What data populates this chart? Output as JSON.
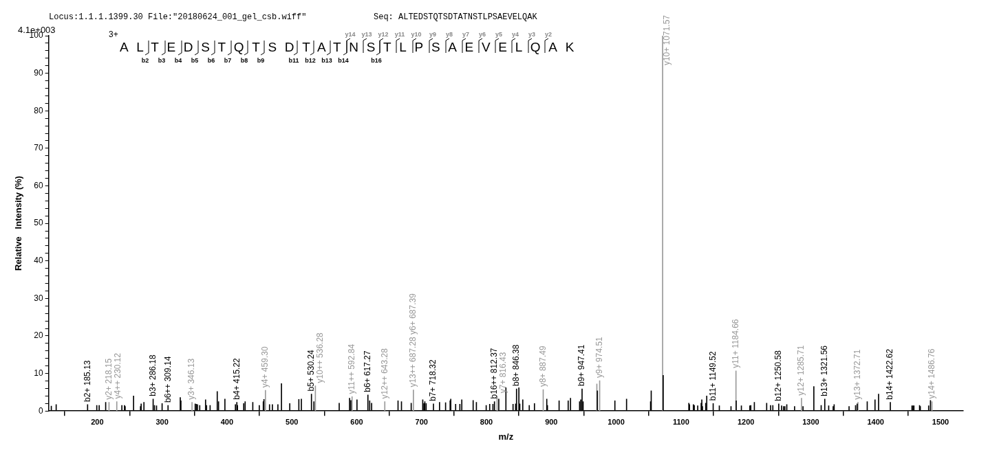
{
  "chart_data": {
    "type": "bar",
    "xlabel": "m/z",
    "ylabel": "Relative   Intensity (%)",
    "xlim": [
      125,
      1535
    ],
    "xticks": [
      200,
      300,
      400,
      500,
      600,
      700,
      800,
      900,
      1000,
      1100,
      1200,
      1300,
      1400,
      1500
    ],
    "ylim": [
      0,
      100
    ],
    "yticks": [
      0,
      {
        "value": 2,
        "label": null
      },
      {
        "value": 4,
        "label": null
      },
      {
        "value": 6,
        "label": null
      },
      {
        "value": 8,
        "label": null
      },
      10,
      {
        "value": 12,
        "label": null
      },
      {
        "value": 14,
        "label": null
      },
      {
        "value": 16,
        "label": null
      },
      {
        "value": 18,
        "label": null
      },
      20,
      {
        "value": 22,
        "label": null
      },
      {
        "value": 24,
        "label": null
      },
      {
        "value": 26,
        "label": null
      },
      {
        "value": 28,
        "label": null
      },
      30,
      {
        "value": 32,
        "label": null
      },
      {
        "value": 34,
        "label": null
      },
      {
        "value": 36,
        "label": null
      },
      {
        "value": 38,
        "label": null
      },
      40,
      {
        "value": 42,
        "label": null
      },
      {
        "value": 44,
        "label": null
      },
      {
        "value": 46,
        "label": null
      },
      {
        "value": 48,
        "label": null
      },
      50,
      {
        "value": 52,
        "label": null
      },
      {
        "value": 54,
        "label": null
      },
      {
        "value": 56,
        "label": null
      },
      {
        "value": 58,
        "label": null
      },
      60,
      {
        "value": 62,
        "label": null
      },
      {
        "value": 64,
        "label": null
      },
      {
        "value": 66,
        "label": null
      },
      {
        "value": 68,
        "label": null
      },
      70,
      {
        "value": 72,
        "label": null
      },
      {
        "value": 74,
        "label": null
      },
      {
        "value": 76,
        "label": null
      },
      {
        "value": 78,
        "label": null
      },
      80,
      {
        "value": 82,
        "label": null
      },
      {
        "value": 84,
        "label": null
      },
      {
        "value": 86,
        "label": null
      },
      {
        "value": 88,
        "label": null
      },
      90,
      {
        "value": 92,
        "label": null
      },
      {
        "value": 94,
        "label": null
      },
      {
        "value": 96,
        "label": null
      },
      {
        "value": 98,
        "label": null
      },
      100
    ],
    "grid": false,
    "legend": false,
    "series": [
      {
        "color": "#000000",
        "x": [
          129.2,
          136.7,
          185.13,
          199.3,
          203,
          213,
          238,
          242,
          243,
          256,
          266.7,
          267.7,
          272,
          286.18,
          288.2,
          291.4,
          300,
          309.14,
          328,
          329,
          351,
          352.7,
          354.5,
          358,
          367,
          368.5,
          374,
          385,
          387,
          396.8,
          413,
          415.22,
          416.2,
          425.8,
          428,
          439.8,
          449.8,
          456,
          457,
          465.6,
          470,
          478.5,
          484,
          496.8,
          510.8,
          514.7,
          530.24,
          534,
          573,
          589,
          591,
          600.4,
          617.27,
          620,
          623,
          663.7,
          669,
          684,
          701.8,
          703.6,
          705,
          707,
          718.32,
          727.7,
          737,
          744,
          745,
          752.5,
          759,
          762,
          779.5,
          784.5,
          799.6,
          805,
          810,
          812.37,
          819,
          830,
          841,
          845,
          846.38,
          850,
          851.4,
          856,
          866,
          874,
          893,
          894,
          912,
          926,
          929.6,
          943.6,
          945.4,
          947.41,
          949,
          971,
          998,
          1016,
          1053,
          1054,
          1072.5,
          1112,
          1113,
          1119,
          1120.4,
          1125.7,
          1131,
          1132,
          1133,
          1138,
          1139.6,
          1149.52,
          1159,
          1177,
          1185,
          1193,
          1206,
          1207.5,
          1213,
          1232,
          1238,
          1241.5,
          1250.58,
          1255,
          1258,
          1260,
          1263,
          1275,
          1288,
          1304.7,
          1316,
          1321.56,
          1327.6,
          1334.5,
          1336,
          1359,
          1369,
          1371.5,
          1387,
          1399,
          1404.5,
          1422.62,
          1456,
          1457.6,
          1459,
          1467.7,
          1468.8,
          1481.7,
          1484.5
        ],
        "values": [
          1.3,
          1.7,
          1.7,
          1.5,
          1.5,
          2.3,
          1.5,
          1.5,
          1.2,
          4.0,
          1.2,
          1.9,
          2.3,
          3.2,
          1.5,
          1.4,
          2.0,
          1.5,
          3.6,
          2.7,
          1.9,
          1.8,
          1.7,
          1.5,
          3.0,
          1.5,
          1.5,
          5.2,
          2.5,
          3.2,
          1.7,
          2.3,
          1.5,
          2.0,
          2.5,
          2.3,
          1.5,
          2.5,
          3.1,
          1.7,
          1.7,
          1.7,
          7.3,
          2.0,
          3.1,
          3.2,
          4.5,
          2.5,
          2.1,
          3.4,
          2.8,
          3.0,
          4.3,
          2.7,
          2.1,
          2.7,
          2.5,
          2.1,
          3.0,
          2.0,
          2.5,
          2.0,
          1.9,
          2.3,
          2.2,
          2.7,
          3.2,
          1.8,
          1.8,
          3.0,
          2.8,
          2.3,
          1.5,
          1.8,
          1.8,
          2.5,
          3.2,
          6.2,
          1.8,
          1.9,
          5.9,
          6.2,
          1.9,
          3.0,
          1.5,
          2.0,
          3.2,
          1.5,
          2.7,
          2.7,
          3.4,
          2.5,
          3.0,
          5.9,
          2.5,
          5.4,
          2.7,
          3.2,
          2.5,
          5.4,
          9.5,
          2.1,
          1.7,
          1.7,
          1.5,
          1.4,
          2.1,
          3.0,
          1.2,
          2.1,
          4.0,
          2.0,
          1.4,
          1.2,
          2.7,
          1.4,
          1.4,
          1.5,
          2.3,
          2.1,
          1.5,
          1.5,
          1.9,
          1.4,
          1.2,
          1.2,
          1.7,
          1.2,
          1.2,
          6.5,
          1.5,
          3.2,
          1.4,
          1.2,
          1.7,
          1.2,
          1.5,
          1.9,
          2.5,
          3.0,
          4.5,
          2.3,
          1.4,
          1.4,
          1.4,
          1.5,
          1.2,
          1.4,
          2.8
        ]
      },
      {
        "color": "#999999",
        "x": [
          218.15,
          230.12,
          346.13,
          459.3,
          536.28,
          592.84,
          643.28,
          687.39,
          816.43,
          887.49,
          970.2,
          974.51,
          1071.57,
          1184.66,
          1285.71,
          1372.71,
          1486.76
        ],
        "values": [
          2.3,
          2.5,
          2.3,
          5.5,
          6.7,
          3.8,
          2.5,
          5.6,
          4.0,
          5.7,
          7.2,
          8.1,
          100,
          10.7,
          3.4,
          2.3,
          2.5
        ]
      }
    ],
    "annotations": [
      "Locus:1.1.1.1399.30 File:\"20180624_001_gel_csb.wiff\"",
      "Seq: ALTEDSTQTSDTATNSTLPSAEVELQAK",
      "4.1e+003",
      "3+",
      "ALTEDSTQTSDTATNSTLPSAEVELQAK",
      "y14",
      "y13",
      "y12",
      "y11",
      "y10",
      "y9",
      "y8",
      "y7",
      "y6",
      "y5",
      "y4",
      "y3",
      "y2",
      "b2",
      "b3",
      "b4",
      "b5",
      "b6",
      "b7",
      "b8",
      "b9",
      "b11",
      "b12",
      "b13",
      "b14",
      "b16",
      {
        "text": "b2+ 185.13",
        "x": 185.13,
        "y": 1.7
      },
      {
        "text": "y2+ 218.15",
        "x": 218.15,
        "y": 2.3
      },
      {
        "text": "y4++ 230.12",
        "x": 230.12,
        "y": 2.5
      },
      {
        "text": "b3+ 286.18",
        "x": 286.18,
        "y": 3.2
      },
      {
        "text": "b6++ 309.14",
        "x": 309.14,
        "y": 1.5
      },
      {
        "text": "y3+ 346.13",
        "x": 346.13,
        "y": 2.3
      },
      {
        "text": "b4+ 415.22",
        "x": 415.22,
        "y": 2.3
      },
      {
        "text": "y4+ 459.30",
        "x": 459.3,
        "y": 5.5
      },
      {
        "text": "b5+ 530.24",
        "x": 530.24,
        "y": 4.5
      },
      {
        "text": "y10++ 536.28",
        "x": 536.28,
        "y": 6.7
      },
      {
        "text": "y11++ 592.84",
        "x": 592.84,
        "y": 3.8
      },
      {
        "text": "b6+ 617.27",
        "x": 617.27,
        "y": 4.3
      },
      {
        "text": "y12++ 643.28",
        "x": 643.28,
        "y": 2.5
      },
      {
        "text": "y13++ 687.28 y6+ 687.39",
        "x": 687.39,
        "y": 5.6
      },
      {
        "text": "b7+ 718.32",
        "x": 718.32,
        "y": 1.9
      },
      {
        "text": "b16++ 812.37",
        "x": 812.37,
        "y": 2.5
      },
      {
        "text": "y7+ 816.43",
        "x": 816.43,
        "y": 4.0
      },
      {
        "text": "b8+ 846.38",
        "x": 846.38,
        "y": 5.9
      },
      {
        "text": "y8+ 887.49",
        "x": 887.49,
        "y": 5.7
      },
      {
        "text": "b9+ 947.41",
        "x": 947.41,
        "y": 5.9
      },
      {
        "text": "y9+ 974.51",
        "x": 974.51,
        "y": 8.1
      },
      {
        "text": "y10+ 1071.57",
        "x": 1071.57,
        "y": 100
      },
      {
        "text": "b11+ 1149.52",
        "x": 1149.52,
        "y": 2.0
      },
      {
        "text": "y11+ 1184.66",
        "x": 1184.66,
        "y": 10.7
      },
      {
        "text": "b12+ 1250.58",
        "x": 1250.58,
        "y": 1.9
      },
      {
        "text": "y12+ 1285.71",
        "x": 1285.71,
        "y": 3.4
      },
      {
        "text": "b13+ 1321.56",
        "x": 1321.56,
        "y": 3.2
      },
      {
        "text": "y13+ 1372.71",
        "x": 1372.71,
        "y": 2.3
      },
      {
        "text": "b14+ 1422.62",
        "x": 1422.62,
        "y": 2.3
      },
      {
        "text": "y14+ 1486.76",
        "x": 1486.76,
        "y": 2.5
      }
    ]
  }
}
